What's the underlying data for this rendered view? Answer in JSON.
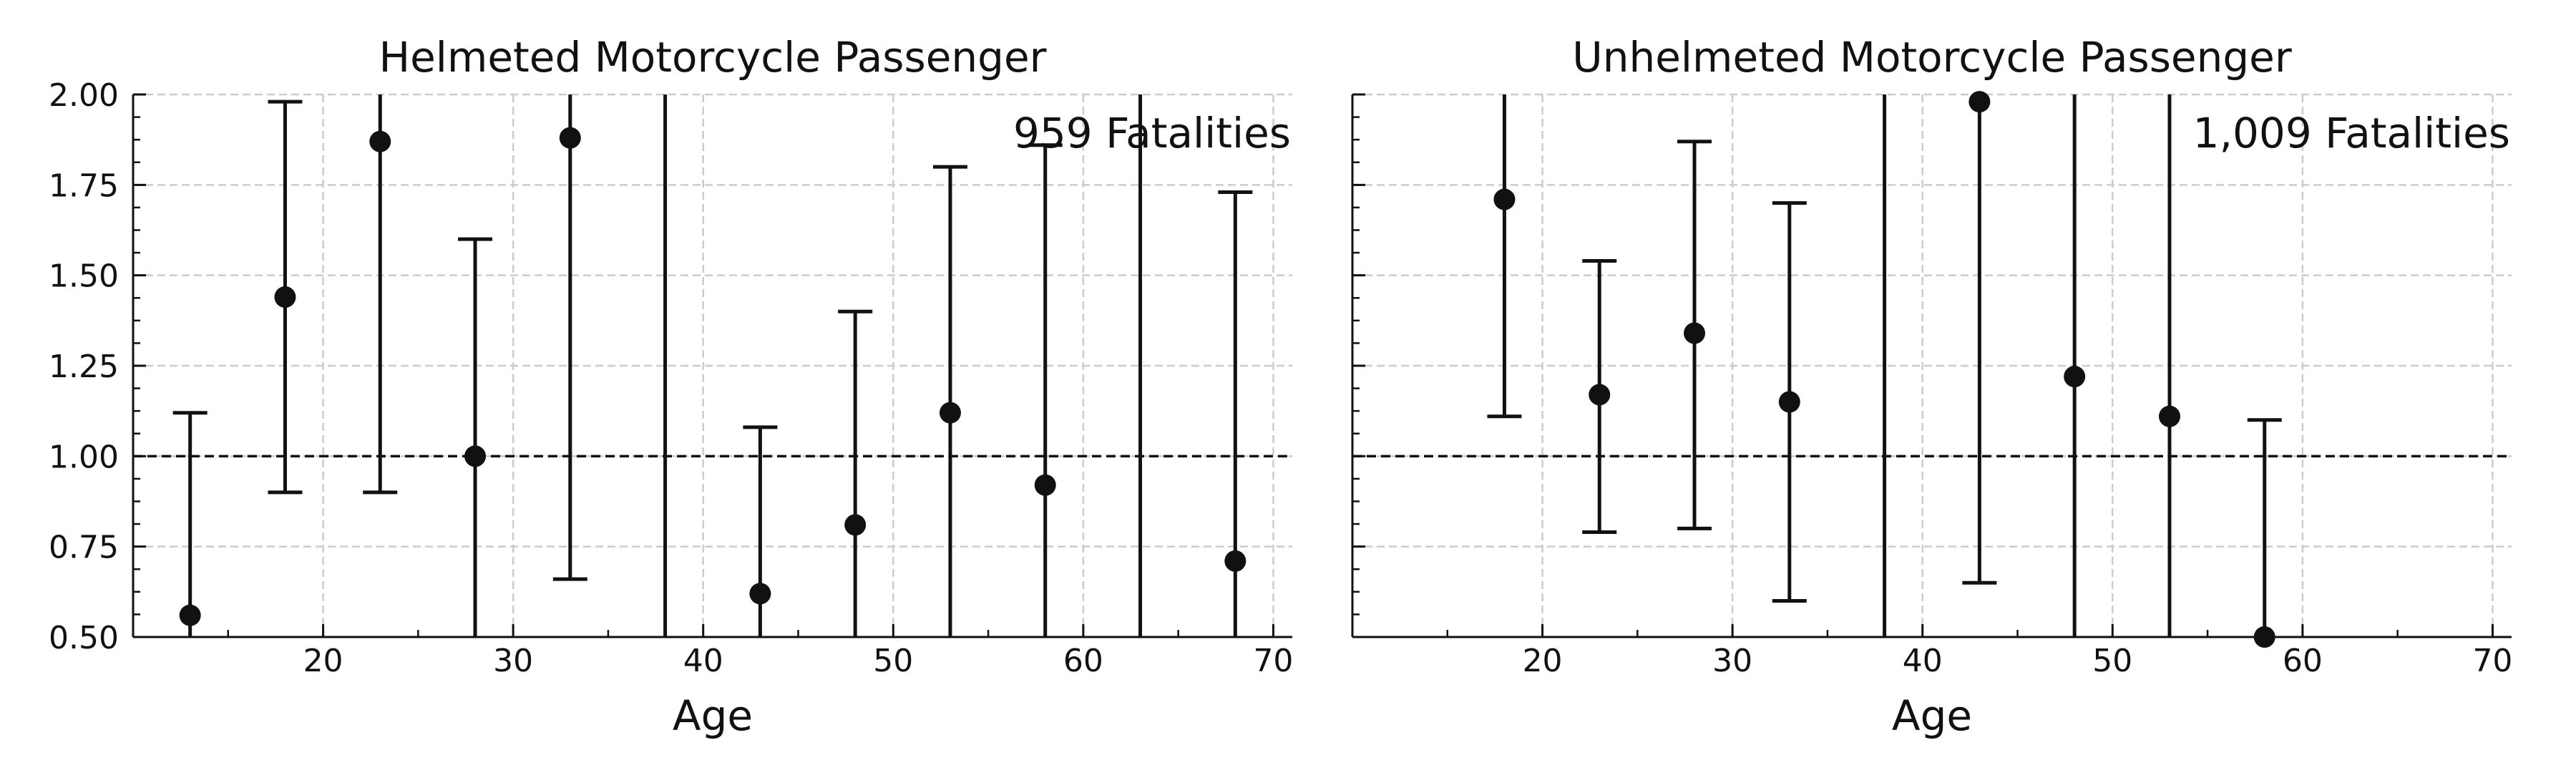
{
  "chart_data": [
    {
      "type": "scatter",
      "title": "Helmeted Motorcycle Passenger",
      "xlabel": "Age",
      "ylabel": "",
      "annotation": "959 Fatalities",
      "xlim": [
        10,
        71
      ],
      "ylim": [
        0.5,
        2.0
      ],
      "xticks": [
        20,
        30,
        40,
        50,
        60,
        70
      ],
      "yticks": [
        0.5,
        0.75,
        1.0,
        1.25,
        1.5,
        1.75,
        2.0
      ],
      "ytick_labels": [
        "0.50",
        "0.75",
        "1.00",
        "1.25",
        "1.50",
        "1.75",
        "2.00"
      ],
      "reference_line": 1.0,
      "grid": true,
      "points": [
        {
          "x": 13,
          "y": 0.56,
          "lower": 0.5,
          "upper": 1.12
        },
        {
          "x": 18,
          "y": 1.44,
          "lower": 0.9,
          "upper": 1.98
        },
        {
          "x": 23,
          "y": 1.87,
          "lower": 0.9,
          "upper": 2.0
        },
        {
          "x": 28,
          "y": 1.0,
          "lower": 0.5,
          "upper": 1.6
        },
        {
          "x": 33,
          "y": 1.88,
          "lower": 0.66,
          "upper": 2.0
        },
        {
          "x": 38,
          "y": null,
          "lower": 0.5,
          "upper": 2.0
        },
        {
          "x": 43,
          "y": 0.62,
          "lower": 0.5,
          "upper": 1.08
        },
        {
          "x": 48,
          "y": 0.81,
          "lower": 0.5,
          "upper": 1.4
        },
        {
          "x": 53,
          "y": 1.12,
          "lower": 0.5,
          "upper": 1.8
        },
        {
          "x": 58,
          "y": 0.92,
          "lower": 0.5,
          "upper": 1.86
        },
        {
          "x": 63,
          "y": null,
          "lower": 0.5,
          "upper": 2.0
        },
        {
          "x": 68,
          "y": 0.71,
          "lower": 0.5,
          "upper": 1.73
        }
      ]
    },
    {
      "type": "scatter",
      "title": "Unhelmeted Motorcycle Passenger",
      "xlabel": "Age",
      "ylabel": "",
      "annotation": "1,009 Fatalities",
      "xlim": [
        10,
        71
      ],
      "ylim": [
        0.5,
        2.0
      ],
      "xticks": [
        20,
        30,
        40,
        50,
        60,
        70
      ],
      "yticks": [
        0.5,
        0.75,
        1.0,
        1.25,
        1.5,
        1.75,
        2.0
      ],
      "ytick_labels": [],
      "reference_line": 1.0,
      "grid": true,
      "points": [
        {
          "x": 18,
          "y": 1.71,
          "lower": 1.11,
          "upper": 2.0
        },
        {
          "x": 23,
          "y": 1.17,
          "lower": 0.79,
          "upper": 1.54
        },
        {
          "x": 28,
          "y": 1.34,
          "lower": 0.8,
          "upper": 1.87
        },
        {
          "x": 33,
          "y": 1.15,
          "lower": 0.6,
          "upper": 1.7
        },
        {
          "x": 38,
          "y": null,
          "lower": 0.5,
          "upper": 2.0
        },
        {
          "x": 43,
          "y": 1.98,
          "lower": 0.65,
          "upper": 2.0
        },
        {
          "x": 48,
          "y": 1.22,
          "lower": 0.5,
          "upper": 2.0
        },
        {
          "x": 53,
          "y": 1.11,
          "lower": 0.5,
          "upper": 2.0
        },
        {
          "x": 58,
          "y": 0.5,
          "lower": 0.5,
          "upper": 1.1
        }
      ]
    }
  ]
}
